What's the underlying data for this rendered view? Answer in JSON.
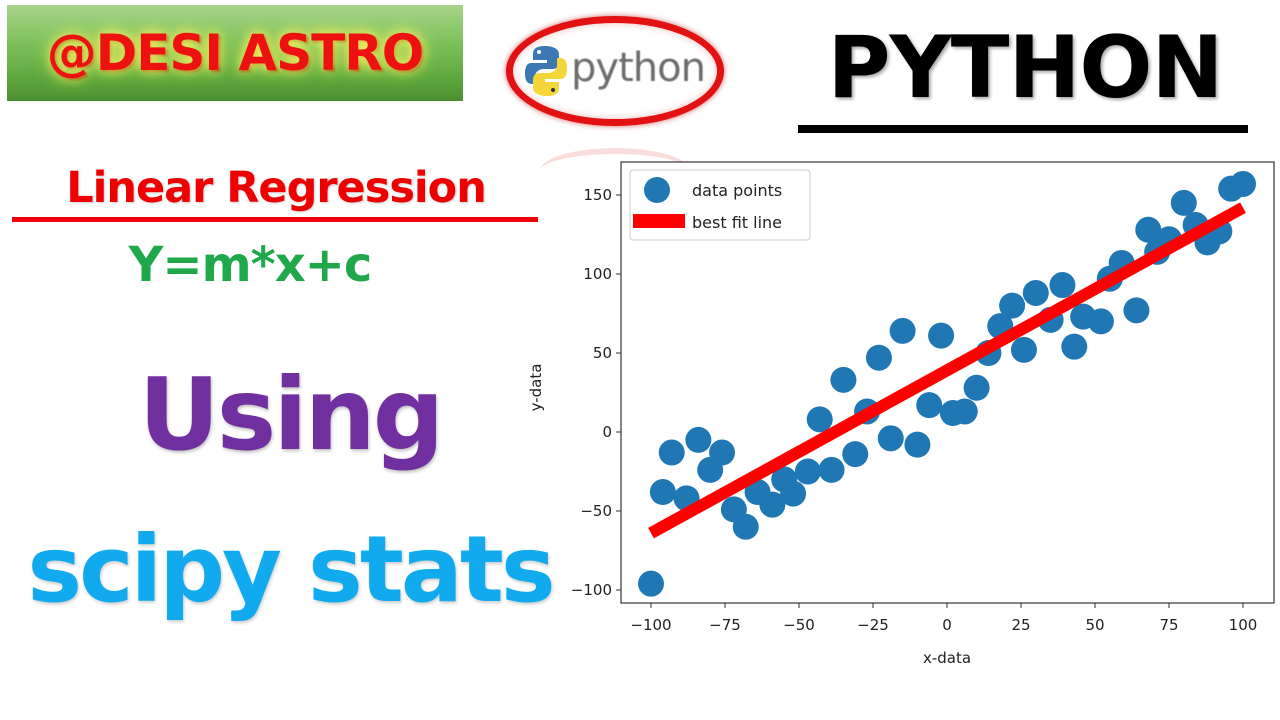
{
  "brand": {
    "label": "@DESI ASTRO"
  },
  "logo": {
    "text": "python",
    "icon": "python-snake-icon"
  },
  "header": {
    "title": "PYTHON"
  },
  "topic": {
    "title": "Linear Regression",
    "equation": "Y=m*x+c",
    "using": "Using",
    "library": "scipy stats"
  },
  "colors": {
    "points": "#1f77b4",
    "fit_line": "#ff0000",
    "brand_text": "#ee1111",
    "topic_title": "#ee0000",
    "equation": "#1fa84a",
    "using": "#7030a0",
    "library": "#11aaee"
  },
  "chart_data": {
    "type": "scatter",
    "title": "",
    "xlabel": "x-data",
    "ylabel": "y-data",
    "xlim": [
      -107,
      110
    ],
    "ylim": [
      -108,
      170
    ],
    "xticks": [
      -100,
      -75,
      -50,
      -25,
      0,
      25,
      50,
      75,
      100
    ],
    "xtick_labels": [
      "−100",
      "−75",
      "−50",
      "−25",
      "0",
      "25",
      "50",
      "75",
      "100"
    ],
    "yticks": [
      -100,
      -50,
      0,
      50,
      100,
      150
    ],
    "ytick_labels": [
      "−100",
      "−50",
      "0",
      "50",
      "100",
      "150"
    ],
    "grid": false,
    "legend_position": "upper left",
    "legend": [
      "data points",
      "best fit line"
    ],
    "series": [
      {
        "name": "data points",
        "type": "scatter",
        "x": [
          -100,
          -96,
          -93,
          -88,
          -84,
          -80,
          -76,
          -72,
          -68,
          -64,
          -59,
          -55,
          -52,
          -47,
          -43,
          -39,
          -35,
          -31,
          -27,
          -23,
          -19,
          -15,
          -10,
          -6,
          -2,
          2,
          6,
          10,
          14,
          18,
          22,
          26,
          30,
          35,
          39,
          43,
          46,
          52,
          55,
          59,
          64,
          68,
          71,
          75,
          80,
          84,
          88,
          92,
          96,
          100
        ],
        "y": [
          -96,
          -38,
          -13,
          -42,
          -5,
          -24,
          -13,
          -49,
          -60,
          -38,
          -46,
          -30,
          -39,
          -25,
          8,
          -24,
          33,
          -14,
          13,
          47,
          -4,
          64,
          -8,
          17,
          61,
          12,
          13,
          28,
          50,
          67,
          80,
          52,
          88,
          71,
          93,
          54,
          73,
          70,
          97,
          107,
          77,
          128,
          114,
          122,
          145,
          131,
          120,
          127,
          154,
          157
        ]
      },
      {
        "name": "best fit line",
        "type": "line",
        "x": [
          -100,
          100
        ],
        "y": [
          -64,
          142
        ]
      }
    ]
  }
}
